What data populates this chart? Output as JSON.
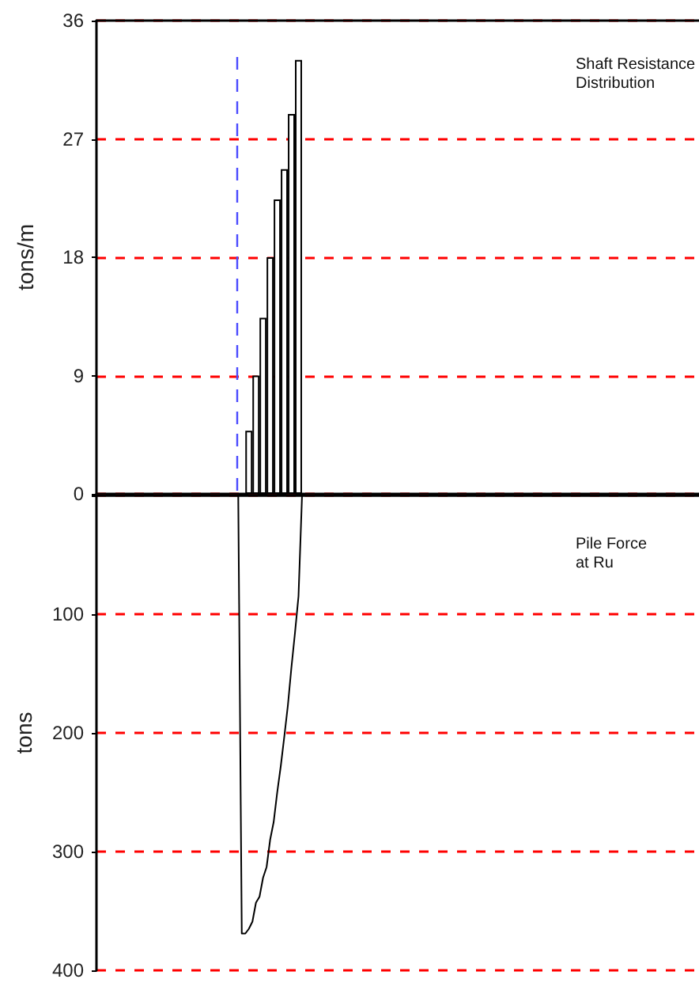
{
  "chart_data": [
    {
      "type": "bar",
      "ylabel": "tons/m",
      "annotations": [
        "Shaft Resistance Distribution"
      ],
      "categories": [
        null,
        null,
        null,
        null,
        null,
        null,
        null,
        null,
        null,
        null,
        null,
        null,
        null,
        null,
        null,
        null,
        null,
        null,
        null,
        null,
        null,
        null,
        null,
        null,
        null,
        null,
        null,
        null,
        null,
        null,
        null,
        null,
        null,
        null,
        null,
        null,
        null,
        null,
        null,
        null,
        null,
        null,
        null,
        null,
        null,
        null,
        null,
        null,
        null,
        null,
        null,
        null,
        null,
        null,
        null,
        null,
        null,
        null,
        null,
        null,
        null,
        null,
        null,
        null,
        null,
        null,
        null,
        null,
        null,
        null,
        null,
        null,
        null,
        null,
        null,
        null,
        null,
        null,
        null,
        null,
        null,
        null,
        null,
        null,
        null
      ],
      "series": [
        {
          "color": "#ffffff",
          "values": [
            null,
            null,
            null,
            null,
            null,
            null,
            null,
            null,
            null,
            null,
            null,
            null,
            null,
            null,
            null,
            null,
            null,
            null,
            null,
            null,
            null,
            4.8,
            9.0,
            13.4,
            18.0,
            22.4,
            24.7,
            28.9,
            33.0,
            null,
            null,
            null,
            null,
            null,
            null,
            null,
            null,
            null,
            null,
            null,
            null,
            null,
            null,
            null,
            null,
            null,
            null,
            null,
            null,
            null,
            null,
            null,
            null,
            null,
            null,
            null,
            null,
            null,
            null,
            null,
            null,
            null,
            null,
            null,
            null,
            null,
            null,
            null,
            null,
            null,
            null,
            null,
            null,
            null,
            null,
            null,
            null,
            null,
            null,
            null,
            null,
            null,
            null,
            null,
            null
          ]
        }
      ],
      "ylim": [
        0,
        36
      ],
      "yticks": [
        0,
        9,
        18,
        27,
        36
      ],
      "grid": "y",
      "tick_labels": "y"
    },
    {
      "type": "line",
      "ylabel": "tons",
      "annotations": [
        "Pile Force at Ru"
      ],
      "categories": [
        null,
        null,
        null,
        null,
        null,
        null,
        null,
        null,
        null,
        null,
        null,
        null,
        null,
        null,
        null,
        null,
        null,
        null,
        null,
        null,
        null,
        null,
        null,
        null,
        null,
        null,
        null,
        null,
        null,
        null,
        null,
        null,
        null,
        null,
        null,
        null,
        null,
        null,
        null,
        null,
        null,
        null,
        null,
        null,
        null,
        null,
        null,
        null,
        null,
        null,
        null,
        null,
        null,
        null,
        null,
        null,
        null,
        null,
        null,
        null,
        null,
        null,
        null,
        null,
        null,
        null,
        null,
        null,
        null,
        null,
        null,
        null,
        null,
        null,
        null,
        null,
        null,
        null,
        null,
        null,
        null,
        null,
        null,
        null,
        null,
        null,
        null,
        null,
        null,
        null,
        null,
        null,
        null,
        null,
        null,
        null,
        null,
        null,
        null,
        null,
        null,
        null,
        null,
        null,
        null,
        null,
        null,
        null,
        null,
        null,
        null,
        null,
        null,
        null,
        null,
        null,
        null,
        null,
        null,
        null,
        null,
        null,
        null,
        null,
        null,
        null,
        null,
        null,
        null,
        null,
        null,
        null,
        null,
        null,
        null,
        null,
        null,
        null,
        null,
        null,
        null,
        null,
        null,
        null,
        null,
        null,
        null,
        null,
        null,
        null,
        null,
        null,
        null,
        null,
        null,
        null,
        null,
        null,
        null,
        null,
        null,
        null,
        null,
        null,
        null,
        null,
        null,
        null,
        null,
        null,
        null
      ],
      "series": [
        {
          "color": "#000000",
          "values": [
            null,
            null,
            null,
            null,
            null,
            null,
            null,
            null,
            null,
            null,
            null,
            null,
            null,
            null,
            null,
            null,
            null,
            null,
            null,
            null,
            null,
            null,
            null,
            null,
            null,
            null,
            null,
            null,
            null,
            null,
            null,
            null,
            null,
            null,
            null,
            null,
            null,
            null,
            null,
            null,
            0,
            369,
            369,
            365,
            359,
            343,
            338,
            322,
            313,
            290,
            275,
            250,
            228,
            203,
            177,
            145,
            116,
            85,
            0,
            null,
            null,
            null,
            null,
            null,
            null,
            null,
            null,
            null,
            null,
            null,
            null,
            null,
            null,
            null,
            null,
            null,
            null,
            null,
            null,
            null,
            null,
            null,
            null,
            null,
            null,
            null,
            null,
            null,
            null,
            null,
            null,
            null,
            null,
            null,
            null,
            null,
            null,
            null,
            null,
            null,
            null,
            null,
            null,
            null,
            null,
            null,
            null,
            null,
            null,
            null,
            null,
            null,
            null,
            null,
            null,
            null,
            null,
            null,
            null,
            null,
            null,
            null,
            null,
            null,
            null,
            null,
            null,
            null,
            null,
            null,
            null,
            null,
            null,
            null,
            null,
            null,
            null,
            null,
            null,
            null,
            null,
            null,
            null,
            null,
            null,
            null,
            null,
            null,
            null,
            null,
            null,
            null,
            null,
            null,
            null,
            null,
            null,
            null,
            null,
            null,
            null,
            null,
            null,
            null,
            null,
            null,
            null,
            null,
            null,
            null,
            null
          ]
        }
      ],
      "ylim": [
        400,
        0
      ],
      "yticks": [
        {
          "value": 0,
          "label": null
        },
        100,
        200,
        300,
        400
      ],
      "grid": "y",
      "tick_labels": "y",
      "line_style": "solid"
    }
  ]
}
